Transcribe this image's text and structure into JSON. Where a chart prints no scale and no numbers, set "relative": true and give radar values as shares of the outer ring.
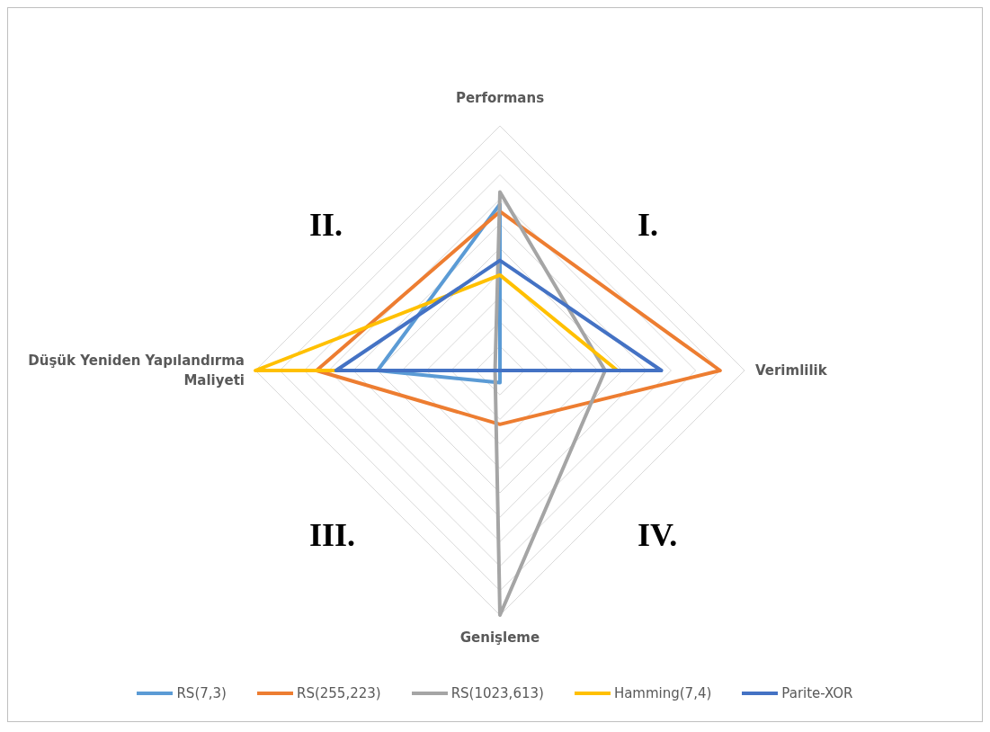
{
  "chart_data": {
    "type": "radar",
    "relative": true,
    "categories": [
      "Performans",
      "Verimlilik",
      "Genişleme",
      "Düşük Yeniden Yapılandırma Maliyeti"
    ],
    "series": [
      {
        "name": "RS(7,3)",
        "color": "#5b9bd5",
        "values": [
          0.68,
          0,
          0.05,
          0.5
        ]
      },
      {
        "name": "RS(255,223)",
        "color": "#ed7d31",
        "values": [
          0.65,
          0.9,
          0.22,
          0.75
        ]
      },
      {
        "name": "RS(1023,613)",
        "color": "#a5a5a5",
        "values": [
          0.73,
          0.43,
          1,
          0.02
        ]
      },
      {
        "name": "Hamming(7,4)",
        "color": "#ffc000",
        "values": [
          0.39,
          0.48,
          0,
          1
        ]
      },
      {
        "name": "Parite-XOR",
        "color": "#4472c4",
        "values": [
          0.45,
          0.66,
          0,
          0.67
        ]
      }
    ],
    "annotations": [
      "I.",
      "II.",
      "III.",
      "IV."
    ],
    "grid": true,
    "legend": "bottom"
  }
}
